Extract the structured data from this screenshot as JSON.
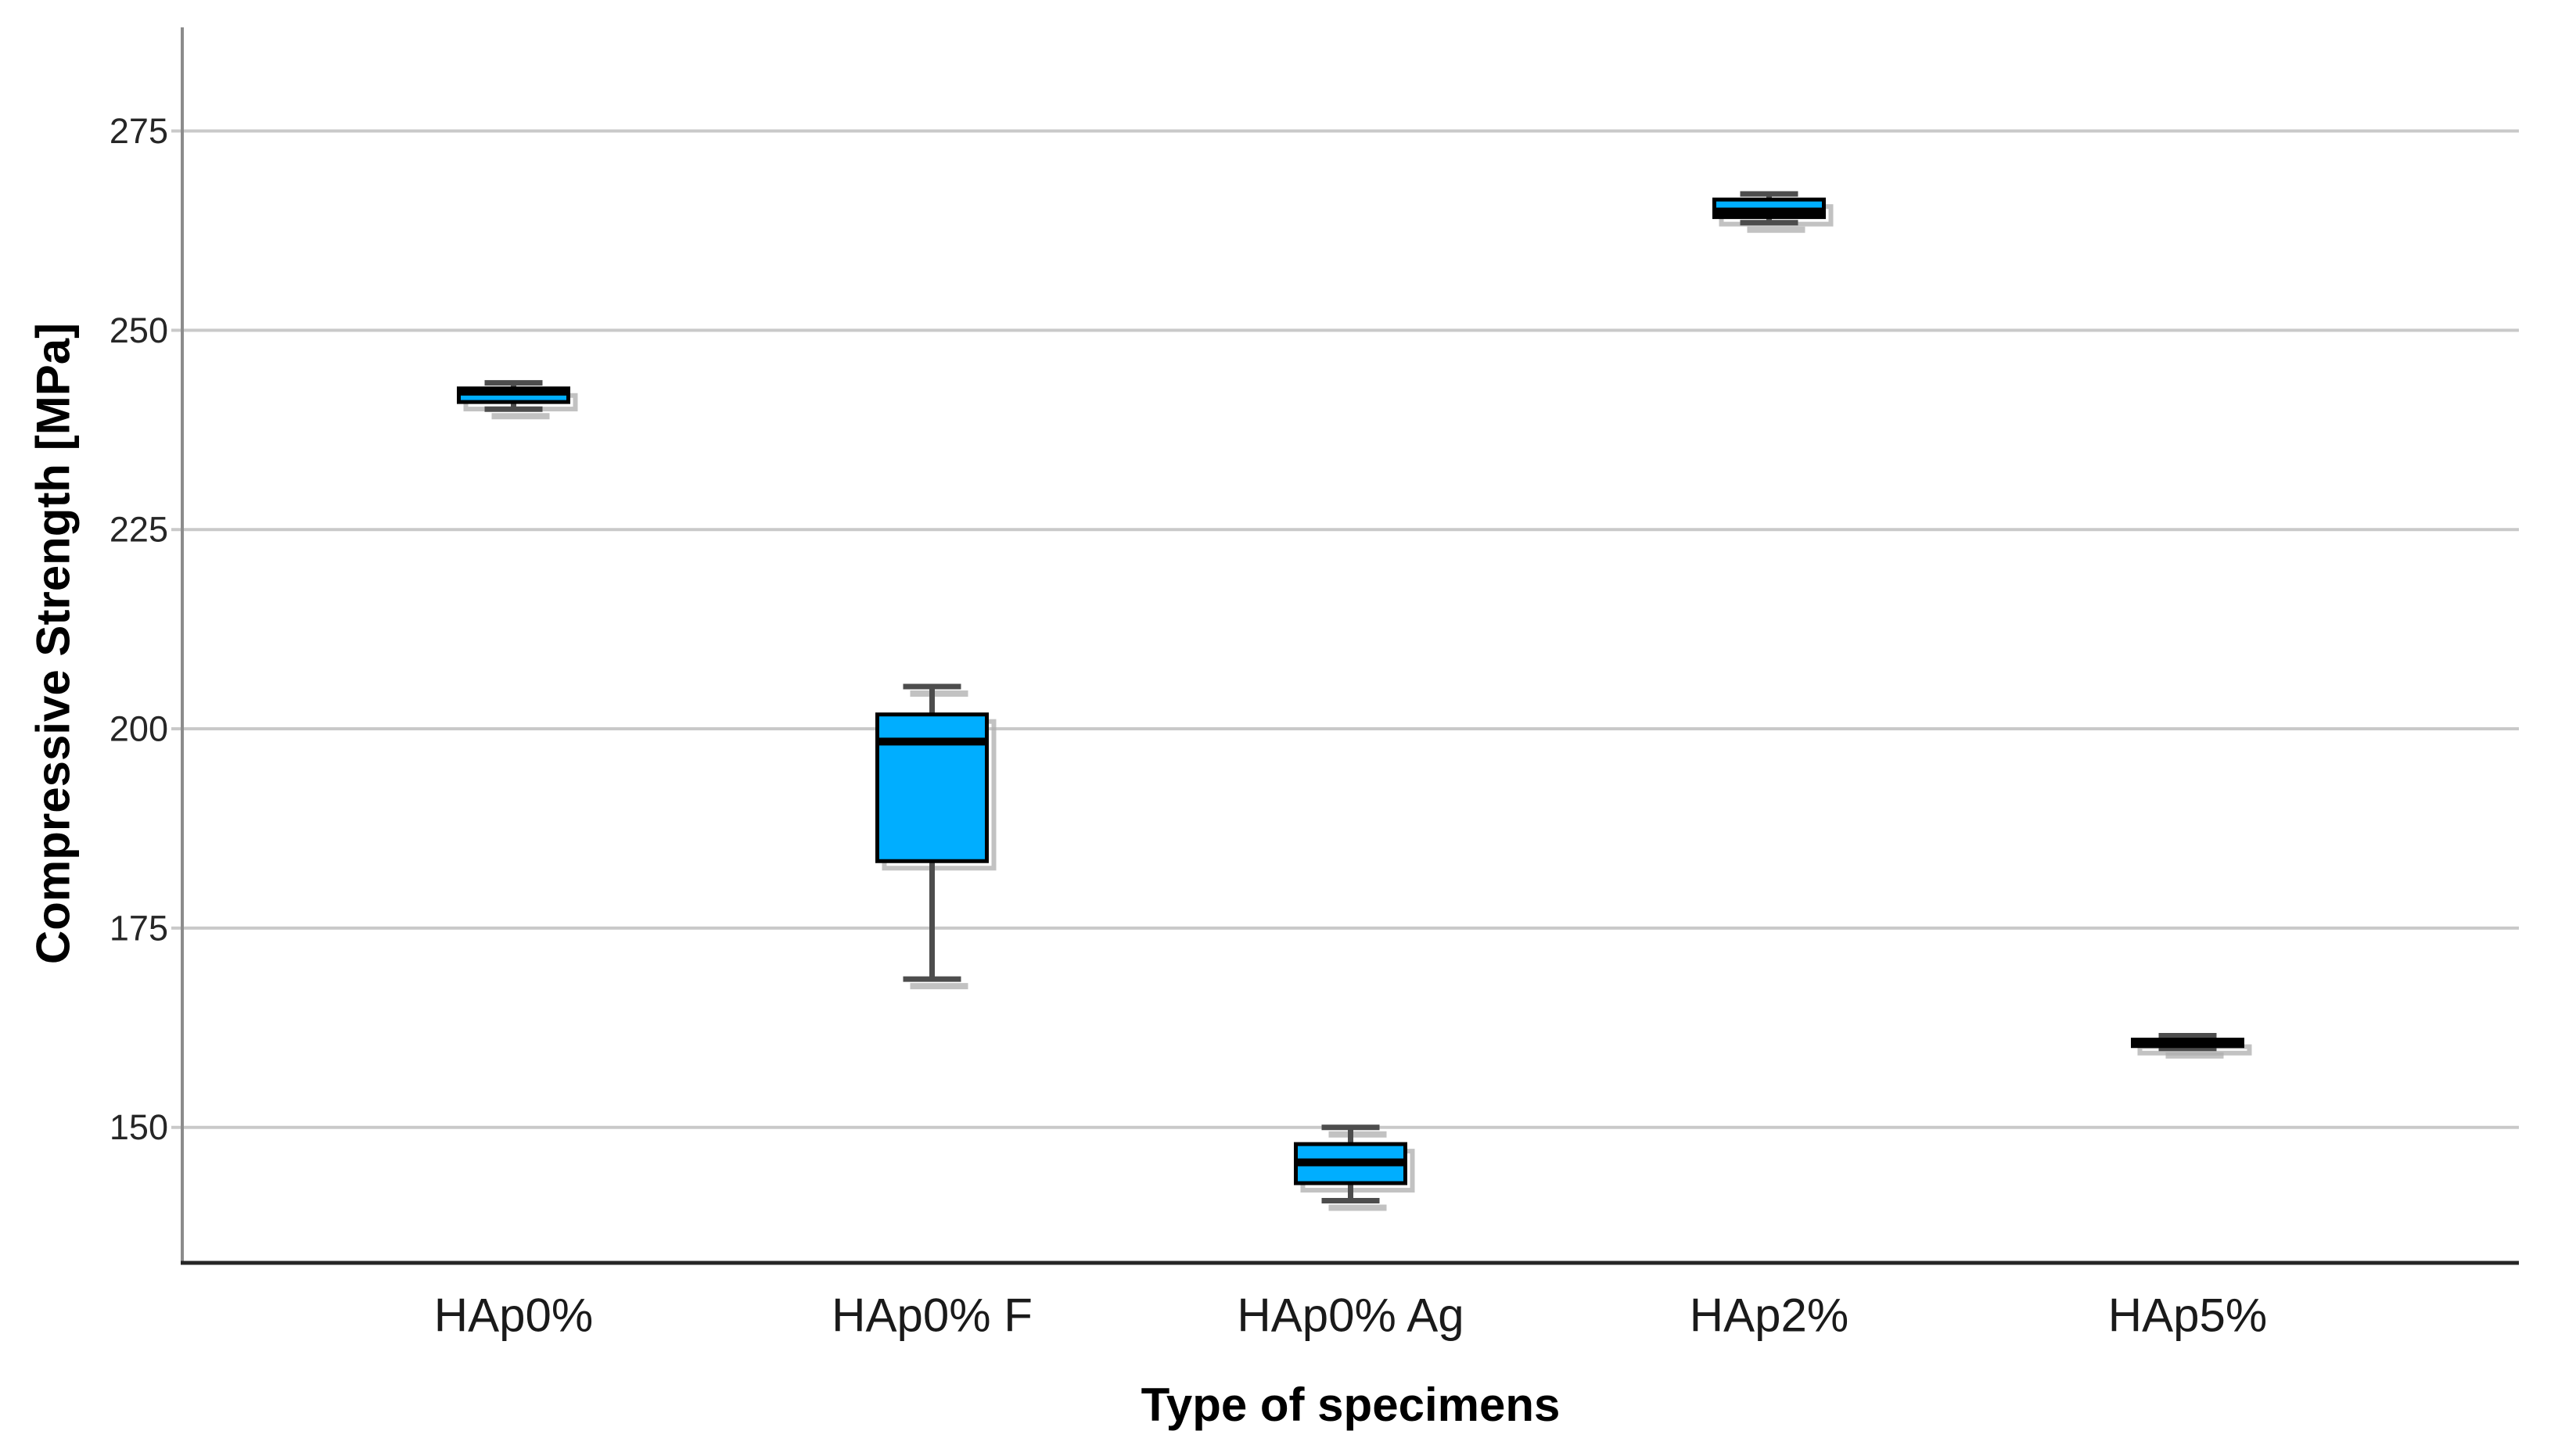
{
  "chart_data": {
    "type": "boxplot",
    "title": "",
    "xlabel": "Type of specimens",
    "ylabel": "Compressive Strength [MPa]",
    "categories": [
      "HAp0%",
      "HAp0% F",
      "HAp0% Ag",
      "HAp2%",
      "HAp5%"
    ],
    "y_ticks": [
      150,
      175,
      200,
      225,
      250,
      275
    ],
    "ylim": [
      133,
      288
    ],
    "grid": "horizontal",
    "legend": "none",
    "series": [
      {
        "category": "HAp0%",
        "min": 240.1,
        "q1": 241.0,
        "median": 242.3,
        "q3": 242.7,
        "max": 243.4
      },
      {
        "category": "HAp0% F",
        "min": 168.6,
        "q1": 183.4,
        "median": 198.4,
        "q3": 201.8,
        "max": 205.3
      },
      {
        "category": "HAp0% Ag",
        "min": 140.8,
        "q1": 143.0,
        "median": 145.6,
        "q3": 147.9,
        "max": 150.0
      },
      {
        "category": "HAp2%",
        "min": 263.5,
        "q1": 264.2,
        "median": 264.9,
        "q3": 266.4,
        "max": 267.1
      },
      {
        "category": "HAp5%",
        "min": 159.9,
        "q1": 160.2,
        "median": 160.6,
        "q3": 161.0,
        "max": 161.5
      }
    ]
  },
  "colors": {
    "box_fill": "#00AEFF",
    "box_border": "#000000",
    "median": "#000000",
    "whisker": "#4D4D4D",
    "shadow": "#ADADAD",
    "gridline": "#C9C9C9",
    "tick_stub": "#BFBFBF",
    "axis_left": "#8C8C8C",
    "axis_bottom": "#262626",
    "tick_label": "#262626",
    "category_label": "#1A1A1A",
    "background": "#FFFFFF"
  }
}
